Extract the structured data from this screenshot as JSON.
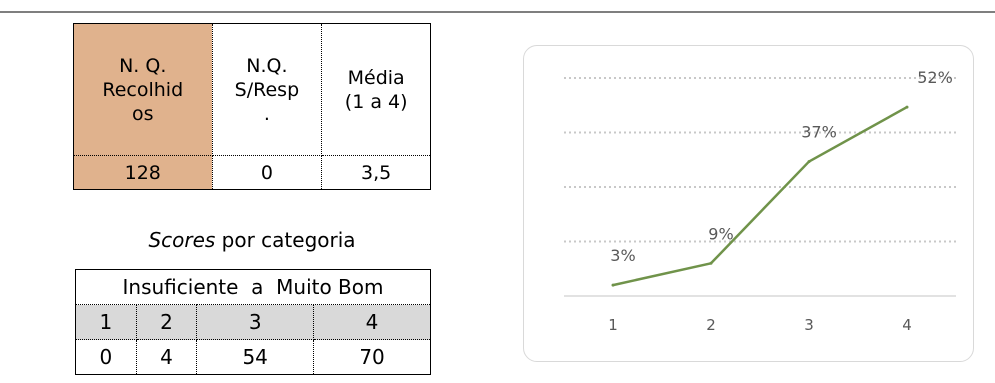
{
  "summary": {
    "headers": [
      "N. Q. Recolhid os",
      "N.Q. S/Resp .",
      "Média (1 a 4)"
    ],
    "header_lines": [
      [
        "N. Q.",
        "Recolhid",
        "os"
      ],
      [
        "N.Q.",
        "S/Resp",
        "."
      ],
      [
        "Média",
        "(1 a 4)"
      ]
    ],
    "values": [
      "128",
      "0",
      "3,5"
    ],
    "highlight_color": "#e0b28d"
  },
  "scores": {
    "caption_italic": "Scores",
    "caption_rest": " por categoria",
    "range_label": "Insuficiente  a  Muito Bom",
    "categories": [
      "1",
      "2",
      "3",
      "4"
    ],
    "counts": [
      "0",
      "4",
      "54",
      "70"
    ]
  },
  "chart_data": {
    "type": "line",
    "x": [
      "1",
      "2",
      "3",
      "4"
    ],
    "series": [
      {
        "values": [
          3,
          9,
          37,
          52
        ],
        "color": "#70934a"
      }
    ],
    "data_labels": [
      "3%",
      "9%",
      "37%",
      "52%"
    ],
    "ylim": [
      0,
      60
    ],
    "grid": "dotted horizontal",
    "legend": "none"
  }
}
